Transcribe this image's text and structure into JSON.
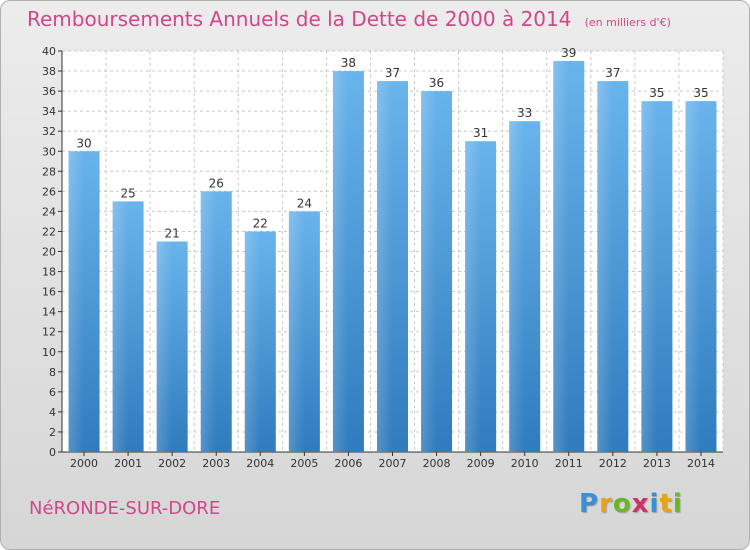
{
  "header": {
    "title": "Remboursements Annuels de la Dette de 2000 à 2014",
    "unit": "(en milliers d'€)"
  },
  "footer": {
    "commune": "NéRONDE-SUR-DORE",
    "logo_letters": [
      "P",
      "r",
      "o",
      "x",
      "i",
      "t",
      "i"
    ],
    "logo_colors": [
      "#3a8fd6",
      "#e8a317",
      "#6bb52a",
      "#d0306a",
      "#3a8fd6",
      "#e8a317",
      "#6bb52a"
    ]
  },
  "colors": {
    "bar_light": "#6ab4ec",
    "bar_dark": "#2f7bbd",
    "grid": "#c8c8c8",
    "axis": "#333333",
    "text": "#333333"
  },
  "chart_data": {
    "type": "bar",
    "title": "Remboursements Annuels de la Dette de 2000 à 2014",
    "xlabel": "",
    "ylabel": "",
    "categories": [
      "2000",
      "2001",
      "2002",
      "2003",
      "2004",
      "2005",
      "2006",
      "2007",
      "2008",
      "2009",
      "2010",
      "2011",
      "2012",
      "2013",
      "2014"
    ],
    "values": [
      30,
      25,
      21,
      26,
      22,
      24,
      38,
      37,
      36,
      31,
      33,
      39,
      37,
      35,
      35
    ],
    "ylim": [
      0,
      40
    ],
    "ytick_step": 2,
    "grid": true,
    "data_labels": true
  }
}
